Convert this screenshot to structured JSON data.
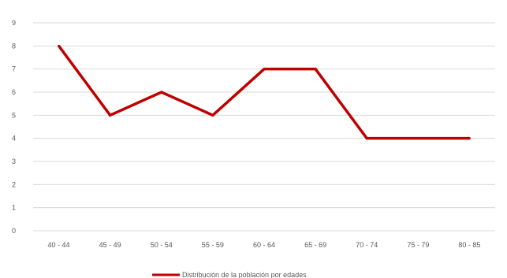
{
  "chart_data": {
    "type": "line",
    "categories": [
      "40 - 44",
      "45 - 49",
      "50 - 54",
      "55 - 59",
      "60 - 64",
      "65 - 69",
      "70 - 74",
      "75 - 79",
      "80 - 85"
    ],
    "series": [
      {
        "name": "Distribución de la población por edades",
        "values": [
          8,
          5,
          6,
          5,
          7,
          7,
          4,
          4,
          4
        ],
        "color": "#C00000"
      }
    ],
    "ylim": [
      0,
      9
    ],
    "yticks": [
      0,
      1,
      2,
      3,
      4,
      5,
      6,
      7,
      8,
      9
    ],
    "grid": true,
    "legend_position": "bottom",
    "gridline_color": "#D9D9D9",
    "text_color": "#595959"
  }
}
